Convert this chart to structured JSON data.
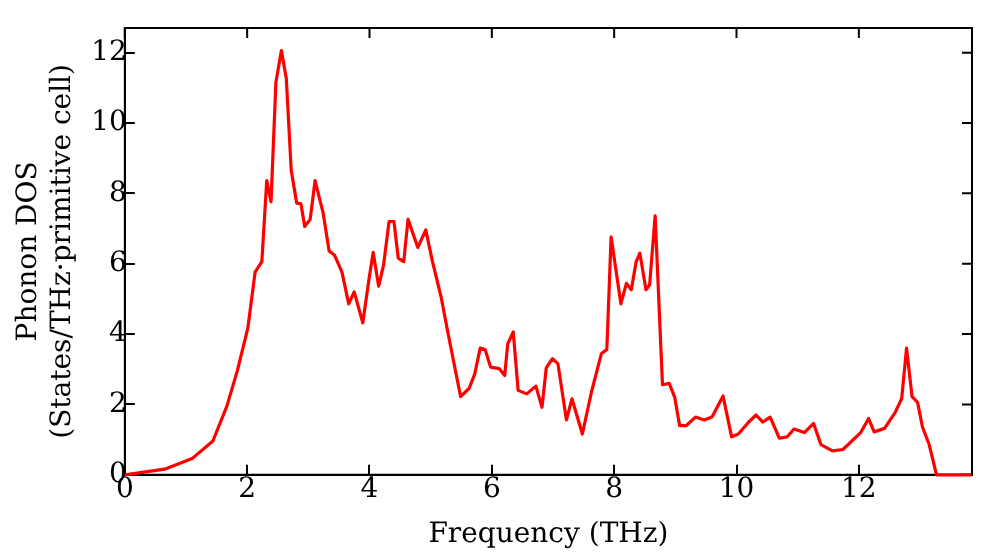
{
  "chart_data": {
    "type": "line",
    "xlabel": "Frequency (THz)",
    "ylabel": "Phonon DOS\n(States/THz·primitive cell)",
    "xlim": [
      0,
      13.85
    ],
    "ylim": [
      0,
      12.7
    ],
    "xticks": [
      0,
      2,
      4,
      6,
      8,
      10,
      12
    ],
    "yticks": [
      0,
      2,
      4,
      6,
      8,
      10,
      12
    ],
    "grid": false,
    "legend": false,
    "marker": "none",
    "line_style": "solid",
    "series": [
      {
        "color": "#ff0000",
        "x": [
          0,
          0.65,
          1.1,
          1.44,
          1.67,
          1.84,
          2.01,
          2.13,
          2.24,
          2.32,
          2.39,
          2.47,
          2.56,
          2.64,
          2.72,
          2.81,
          2.88,
          2.94,
          3.03,
          3.11,
          3.24,
          3.34,
          3.43,
          3.55,
          3.66,
          3.75,
          3.89,
          4.0,
          4.06,
          4.15,
          4.23,
          4.32,
          4.4,
          4.47,
          4.56,
          4.63,
          4.79,
          4.92,
          5.03,
          5.17,
          5.28,
          5.49,
          5.63,
          5.72,
          5.81,
          5.89,
          5.98,
          6.12,
          6.21,
          6.26,
          6.35,
          6.43,
          6.57,
          6.72,
          6.82,
          6.89,
          6.99,
          7.08,
          7.22,
          7.31,
          7.48,
          7.63,
          7.79,
          7.88,
          7.95,
          8.11,
          8.2,
          8.28,
          8.36,
          8.42,
          8.52,
          8.58,
          8.67,
          8.79,
          8.9,
          8.99,
          9.07,
          9.18,
          9.33,
          9.47,
          9.6,
          9.78,
          9.92,
          10.03,
          10.2,
          10.32,
          10.43,
          10.55,
          10.7,
          10.83,
          10.94,
          11.11,
          11.26,
          11.38,
          11.57,
          11.74,
          12.03,
          12.16,
          12.25,
          12.42,
          12.59,
          12.7,
          12.78,
          12.87,
          12.96,
          13.04,
          13.15,
          13.27,
          13.84
        ],
        "values": [
          0,
          0.16,
          0.46,
          0.96,
          1.96,
          2.96,
          4.16,
          5.76,
          6.06,
          8.36,
          7.76,
          11.16,
          12.06,
          11.26,
          8.66,
          7.72,
          7.7,
          7.06,
          7.26,
          8.36,
          7.46,
          6.36,
          6.24,
          5.76,
          4.86,
          5.2,
          4.32,
          5.66,
          6.32,
          5.36,
          5.96,
          7.2,
          7.2,
          6.16,
          6.06,
          7.26,
          6.46,
          6.96,
          6.06,
          5.06,
          4.06,
          2.22,
          2.46,
          2.86,
          3.6,
          3.56,
          3.06,
          3.02,
          2.82,
          3.72,
          4.06,
          2.4,
          2.3,
          2.52,
          1.92,
          3.04,
          3.3,
          3.16,
          1.56,
          2.16,
          1.16,
          2.36,
          3.44,
          3.56,
          6.76,
          4.86,
          5.44,
          5.26,
          6.06,
          6.3,
          5.26,
          5.4,
          7.36,
          2.56,
          2.6,
          2.2,
          1.4,
          1.4,
          1.64,
          1.56,
          1.64,
          2.24,
          1.08,
          1.16,
          1.5,
          1.7,
          1.5,
          1.64,
          1.04,
          1.08,
          1.3,
          1.2,
          1.46,
          0.86,
          0.68,
          0.72,
          1.2,
          1.6,
          1.22,
          1.32,
          1.76,
          2.16,
          3.6,
          2.22,
          2.06,
          1.36,
          0.86,
          0,
          0
        ]
      }
    ]
  }
}
